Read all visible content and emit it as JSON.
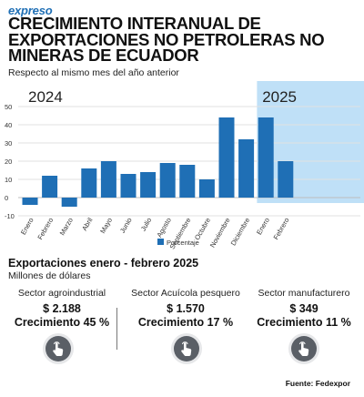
{
  "brand": "expreso",
  "header": {
    "title": "CRECIMIENTO INTERANUAL DE EXPORTACIONES NO PETROLERAS NO MINERAS DE ECUADOR",
    "subtitle": "Respecto al mismo mes del año anterior"
  },
  "colors": {
    "bar": "#1f6fb5",
    "highlight": "#bfe0f7",
    "brand": "#1f6fb5",
    "button": "#5a5f66"
  },
  "chart_data": {
    "type": "bar",
    "categories": [
      "Enero",
      "Febrero",
      "Marzo",
      "Abril",
      "Mayo",
      "Junio",
      "Julio",
      "Agosto",
      "Septiembre",
      "Octubre",
      "Noviembre",
      "Diciembre",
      "Enero",
      "Febrero"
    ],
    "series": [
      {
        "name": "Porcentaje",
        "values": [
          -4,
          12,
          -5,
          16,
          20,
          13,
          14,
          19,
          18,
          10,
          44,
          32,
          44,
          20
        ]
      }
    ],
    "period_labels": [
      {
        "label": "2024",
        "start": 0,
        "end": 11
      },
      {
        "label": "2025",
        "start": 12,
        "end": 13,
        "highlighted": true
      }
    ],
    "ylim": [
      -10,
      50
    ],
    "yticks": [
      -10,
      0,
      10,
      20,
      30,
      40,
      50
    ],
    "grid": true,
    "legend": "bottom"
  },
  "summary": {
    "title": "Exportaciones enero - febrero 2025",
    "subtitle": "Millones de dólares",
    "sectors": [
      {
        "name": "Sector agroindustrial",
        "amount": "$ 2.188",
        "growth": "Crecimiento 45 %",
        "icon": "tap-hand-icon"
      },
      {
        "name": "Sector Acuícola pesquero",
        "amount": "$ 1.570",
        "growth": "Crecimiento 17 %",
        "icon": "tap-hand-icon"
      },
      {
        "name": "Sector manufacturero",
        "amount": "$ 349",
        "growth": "Crecimiento 11 %",
        "icon": "tap-hand-icon"
      }
    ]
  },
  "source": "Fuente: Fedexpor"
}
